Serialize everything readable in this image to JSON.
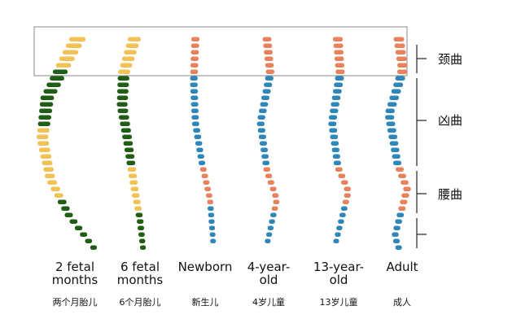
{
  "spines": [
    {
      "label_lines": [
        "2 fetal",
        "months"
      ],
      "chinese": "两个月胎儿"
    },
    {
      "label_lines": [
        "6 fetal",
        "months"
      ],
      "chinese": "6个月胎儿"
    },
    {
      "label_lines": [
        "Newborn"
      ],
      "chinese": "新生儿"
    },
    {
      "label_lines": [
        "4-year-",
        "old"
      ],
      "chinese": "4岁儿童"
    },
    {
      "label_lines": [
        "13-year-",
        "old"
      ],
      "chinese": "13岁儿童"
    },
    {
      "label_lines": [
        "Adult"
      ],
      "chinese": "成人"
    }
  ],
  "curves": [
    {
      "label": "颈曲"
    },
    {
      "label": "凶曲"
    },
    {
      "label": "腰曲"
    }
  ]
}
